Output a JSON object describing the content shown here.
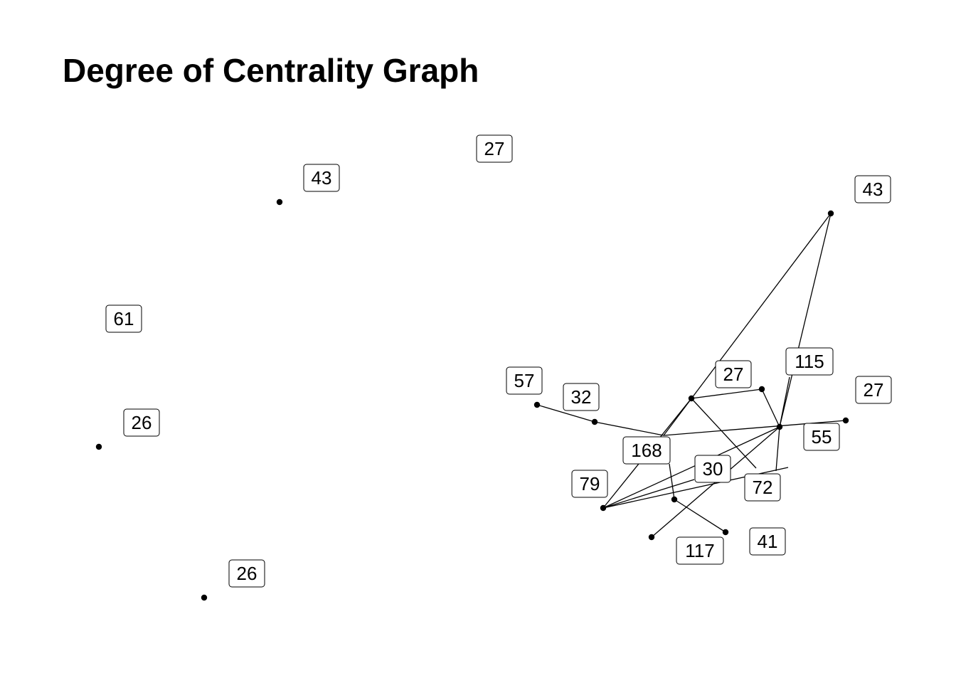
{
  "title": "Degree of Centrality Graph",
  "graph": {
    "labels": [
      "27",
      "43",
      "43",
      "61",
      "57",
      "32",
      "27",
      "115",
      "27",
      "26",
      "168",
      "55",
      "30",
      "79",
      "72",
      "117",
      "41",
      "26"
    ]
  }
}
